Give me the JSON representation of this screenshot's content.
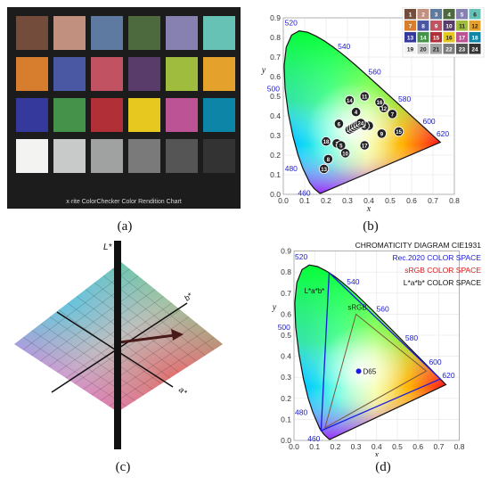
{
  "captions": {
    "a": "(a)",
    "b": "(b)",
    "c": "(c)",
    "d": "(d)"
  },
  "colorchecker": {
    "brand_text": "x·rite ColorChecker Color Rendition Chart",
    "patch_colors": [
      [
        "#734c3c",
        "#c2907e",
        "#5e7aa0",
        "#4c6a3d",
        "#8681b0",
        "#66c2b5"
      ],
      [
        "#d67d2e",
        "#4a58a4",
        "#c05262",
        "#5a3c6a",
        "#9fbc3e",
        "#e4a22d"
      ],
      [
        "#34399b",
        "#45934a",
        "#b13037",
        "#e7c81f",
        "#bc5395",
        "#0d85a7"
      ],
      [
        "#f3f3f2",
        "#c8c9c9",
        "#a0a1a1",
        "#7a7a7a",
        "#555556",
        "#333334"
      ]
    ]
  },
  "cie_b": {
    "x_ticks": [
      "0.0",
      "0.1",
      "0.2",
      "0.3",
      "0.4",
      "0.5",
      "0.6",
      "0.7",
      "0.8"
    ],
    "y_ticks": [
      "0.0",
      "0.1",
      "0.2",
      "0.3",
      "0.4",
      "0.5",
      "0.6",
      "0.7",
      "0.8",
      "0.9"
    ],
    "xlabel": "x",
    "ylabel": "y",
    "wavelength_labels": [
      "460",
      "480",
      "500",
      "520",
      "540",
      "560",
      "580",
      "600",
      "620"
    ],
    "legend_numbers": [
      "1",
      "2",
      "3",
      "4",
      "5",
      "6",
      "7",
      "8",
      "9",
      "10",
      "11",
      "12",
      "13",
      "14",
      "15",
      "16",
      "17",
      "18",
      "19",
      "20",
      "21",
      "22",
      "23",
      "24"
    ],
    "legend_colors": [
      "#734c3c",
      "#c2907e",
      "#5e7aa0",
      "#4c6a3d",
      "#8681b0",
      "#66c2b5",
      "#d67d2e",
      "#4a58a4",
      "#c05262",
      "#5a3c6a",
      "#9fbc3e",
      "#e4a22d",
      "#34399b",
      "#45934a",
      "#b13037",
      "#e7c81f",
      "#bc5395",
      "#0d85a7",
      "#f3f3f2",
      "#c8c9c9",
      "#a0a1a1",
      "#7a7a7a",
      "#555556",
      "#333334"
    ],
    "points": [
      {
        "n": "1",
        "x": 0.4,
        "y": 0.35
      },
      {
        "n": "2",
        "x": 0.38,
        "y": 0.35
      },
      {
        "n": "3",
        "x": 0.25,
        "y": 0.26
      },
      {
        "n": "4",
        "x": 0.34,
        "y": 0.42
      },
      {
        "n": "5",
        "x": 0.27,
        "y": 0.25
      },
      {
        "n": "6",
        "x": 0.26,
        "y": 0.36
      },
      {
        "n": "7",
        "x": 0.51,
        "y": 0.41
      },
      {
        "n": "8",
        "x": 0.21,
        "y": 0.18
      },
      {
        "n": "9",
        "x": 0.46,
        "y": 0.31
      },
      {
        "n": "10",
        "x": 0.29,
        "y": 0.21
      },
      {
        "n": "11",
        "x": 0.38,
        "y": 0.5
      },
      {
        "n": "12",
        "x": 0.47,
        "y": 0.44
      },
      {
        "n": "13",
        "x": 0.19,
        "y": 0.13
      },
      {
        "n": "14",
        "x": 0.31,
        "y": 0.48
      },
      {
        "n": "15",
        "x": 0.54,
        "y": 0.32
      },
      {
        "n": "16",
        "x": 0.45,
        "y": 0.47
      },
      {
        "n": "17",
        "x": 0.38,
        "y": 0.25
      },
      {
        "n": "18",
        "x": 0.2,
        "y": 0.27
      },
      {
        "n": "19",
        "x": 0.31,
        "y": 0.33
      },
      {
        "n": "20",
        "x": 0.31,
        "y": 0.33
      },
      {
        "n": "21",
        "x": 0.31,
        "y": 0.33
      },
      {
        "n": "22",
        "x": 0.31,
        "y": 0.33
      },
      {
        "n": "23",
        "x": 0.31,
        "y": 0.33
      },
      {
        "n": "24",
        "x": 0.31,
        "y": 0.33
      }
    ]
  },
  "lab3d": {
    "l_label": "L*",
    "a_label": "a*",
    "b_label": "b*"
  },
  "cie_d": {
    "x_ticks": [
      "0.0",
      "0.1",
      "0.2",
      "0.3",
      "0.4",
      "0.5",
      "0.6",
      "0.7",
      "0.8"
    ],
    "y_ticks": [
      "0.0",
      "0.1",
      "0.2",
      "0.3",
      "0.4",
      "0.5",
      "0.6",
      "0.7",
      "0.8",
      "0.9"
    ],
    "xlabel": "x",
    "ylabel": "y",
    "wavelength_labels": [
      "460",
      "480",
      "500",
      "520",
      "540",
      "560",
      "580",
      "600",
      "620"
    ],
    "title": "CHROMATICITY DIAGRAM CIE1931",
    "legend": [
      {
        "label": "Rec.2020 COLOR SPACE",
        "color": "#1a1add"
      },
      {
        "label": "sRGB COLOR SPACE",
        "color": "#dd1a1a"
      },
      {
        "label": "L*a*b* COLOR SPACE",
        "color": "#111111"
      }
    ],
    "srgb_label": "sRGB",
    "lab_label": "L*a*b*",
    "d65_label": "D65",
    "d65": {
      "x": 0.3127,
      "y": 0.329
    }
  }
}
